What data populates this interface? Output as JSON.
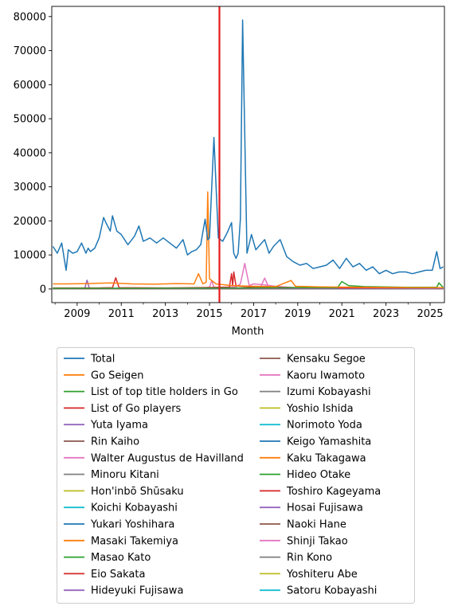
{
  "chart_data": {
    "type": "line",
    "xlabel": "Month",
    "ylabel": "",
    "title": "",
    "x_range": [
      2007.85,
      2025.65
    ],
    "ylim": [
      -4000,
      83000
    ],
    "x_ticks": [
      2009,
      2011,
      2013,
      2015,
      2017,
      2019,
      2021,
      2023,
      2025
    ],
    "x_tick_labels": [
      "2009",
      "2011",
      "2013",
      "2015",
      "2017",
      "2019",
      "2021",
      "2023",
      "2025"
    ],
    "y_ticks": [
      0,
      10000,
      20000,
      30000,
      40000,
      50000,
      60000,
      70000,
      80000
    ],
    "y_tick_labels": [
      "0",
      "10000",
      "20000",
      "30000",
      "40000",
      "50000",
      "60000",
      "70000",
      "80000"
    ],
    "grid": false,
    "legend_position": "below",
    "vertical_line": {
      "x": 2015.45,
      "color": "#e41a1c"
    },
    "series": [
      {
        "name": "Total",
        "color": "#1f77b4",
        "x": [
          2007.9,
          2008.1,
          2008.3,
          2008.5,
          2008.6,
          2008.8,
          2009.0,
          2009.2,
          2009.4,
          2009.5,
          2009.6,
          2009.8,
          2010.0,
          2010.2,
          2010.3,
          2010.5,
          2010.6,
          2010.8,
          2011.0,
          2011.3,
          2011.6,
          2011.8,
          2012.0,
          2012.3,
          2012.6,
          2012.9,
          2013.2,
          2013.5,
          2013.8,
          2014.0,
          2014.2,
          2014.4,
          2014.6,
          2014.8,
          2014.92,
          2015.0,
          2015.2,
          2015.4,
          2015.6,
          2015.8,
          2016.0,
          2016.1,
          2016.2,
          2016.3,
          2016.4,
          2016.5,
          2016.7,
          2016.9,
          2017.1,
          2017.3,
          2017.5,
          2017.7,
          2017.9,
          2018.2,
          2018.5,
          2018.8,
          2019.1,
          2019.4,
          2019.7,
          2020.0,
          2020.3,
          2020.6,
          2020.9,
          2021.2,
          2021.5,
          2021.8,
          2022.1,
          2022.4,
          2022.7,
          2023.0,
          2023.3,
          2023.6,
          2023.9,
          2024.2,
          2024.5,
          2024.8,
          2025.1,
          2025.3,
          2025.45,
          2025.6
        ],
        "y": [
          12500,
          10500,
          13500,
          5500,
          11500,
          10500,
          11000,
          13500,
          10500,
          12000,
          11000,
          12000,
          15000,
          21000,
          19500,
          17000,
          21500,
          17000,
          16000,
          13000,
          15500,
          18500,
          14000,
          15000,
          13500,
          15000,
          13500,
          12000,
          14500,
          10000,
          11000,
          11500,
          13000,
          20500,
          14500,
          15000,
          44500,
          15000,
          14000,
          16500,
          19500,
          10500,
          9000,
          10500,
          20500,
          79000,
          10500,
          16000,
          11500,
          13000,
          14500,
          10500,
          12500,
          14500,
          9500,
          8000,
          7000,
          7500,
          6000,
          6500,
          7000,
          8500,
          6000,
          9000,
          6500,
          7500,
          5500,
          6500,
          4500,
          5500,
          4500,
          5000,
          5000,
          4500,
          5000,
          5500,
          5500,
          11000,
          6000,
          6500
        ]
      },
      {
        "name": "Go Seigen",
        "color": "#ff7f0e",
        "x": [
          2007.9,
          2008.5,
          2009.5,
          2010.5,
          2011.5,
          2012.5,
          2013.5,
          2014.3,
          2014.5,
          2014.7,
          2014.85,
          2014.92,
          2015.0,
          2015.3,
          2016.0,
          2017.0,
          2018.0,
          2018.7,
          2018.9,
          2020.0,
          2022.0,
          2024.0,
          2025.6
        ],
        "y": [
          1500,
          1500,
          1600,
          1800,
          1500,
          1400,
          1600,
          1500,
          4500,
          1500,
          2000,
          28500,
          3000,
          1500,
          1000,
          800,
          700,
          2500,
          800,
          600,
          500,
          400,
          400
        ]
      },
      {
        "name": "List of top title holders in Go",
        "color": "#2ca02c",
        "x": [
          2007.9,
          2012.0,
          2016.0,
          2020.0,
          2020.8,
          2021.0,
          2021.3,
          2022.0,
          2024.0,
          2025.3,
          2025.4,
          2025.6
        ],
        "y": [
          200,
          200,
          300,
          400,
          400,
          2200,
          1000,
          700,
          500,
          500,
          1800,
          400
        ]
      },
      {
        "name": "List of Go players",
        "color": "#d62728",
        "x": [
          2007.9,
          2010.0,
          2010.6,
          2010.75,
          2010.9,
          2013.0,
          2015.9,
          2016.0,
          2016.05,
          2016.1,
          2016.2,
          2017.0,
          2020.0,
          2025.6
        ],
        "y": [
          300,
          300,
          400,
          3300,
          400,
          300,
          500,
          4500,
          1000,
          5000,
          900,
          500,
          400,
          400
        ]
      },
      {
        "name": "Yuta Iyama",
        "color": "#9467bd",
        "x": [
          2007.9,
          2009.0,
          2009.35,
          2009.45,
          2009.55,
          2012.0,
          2016.0,
          2020.0,
          2025.6
        ],
        "y": [
          150,
          150,
          200,
          2600,
          200,
          150,
          200,
          200,
          200
        ]
      },
      {
        "name": "Rin Kaiho",
        "color": "#8c564b",
        "x": [
          2007.9,
          2016.0,
          2025.6
        ],
        "y": [
          100,
          100,
          100
        ]
      },
      {
        "name": "Walter Augustus de Havilland",
        "color": "#e377c2",
        "x": [
          2007.9,
          2014.5,
          2015.0,
          2015.1,
          2015.2,
          2016.2,
          2016.4,
          2016.6,
          2016.8,
          2017.0,
          2017.5,
          2018.0,
          2019.0,
          2025.6
        ],
        "y": [
          100,
          100,
          500,
          2500,
          500,
          600,
          1500,
          7500,
          1000,
          1500,
          1200,
          800,
          300,
          100
        ]
      },
      {
        "name": "Minoru Kitani",
        "color": "#7f7f7f",
        "x": [
          2007.9,
          2016.0,
          2025.6
        ],
        "y": [
          80,
          80,
          80
        ]
      },
      {
        "name": "Hon'inbō Shūsaku",
        "color": "#bcbd22",
        "x": [
          2007.9,
          2016.0,
          2025.6
        ],
        "y": [
          120,
          120,
          120
        ]
      },
      {
        "name": "Koichi Kobayashi",
        "color": "#17becf",
        "x": [
          2007.9,
          2016.0,
          2025.6
        ],
        "y": [
          60,
          60,
          60
        ]
      },
      {
        "name": "Yukari Yoshihara",
        "color": "#1f77b4",
        "x": [
          2007.9,
          2016.0,
          2025.6
        ],
        "y": [
          100,
          100,
          100
        ]
      },
      {
        "name": "Masaki Takemiya",
        "color": "#ff7f0e",
        "x": [
          2007.9,
          2016.0,
          2025.6
        ],
        "y": [
          70,
          70,
          70
        ]
      },
      {
        "name": "Masao Kato",
        "color": "#2ca02c",
        "x": [
          2007.9,
          2016.0,
          2025.6
        ],
        "y": [
          60,
          60,
          60
        ]
      },
      {
        "name": "Eio Sakata",
        "color": "#d62728",
        "x": [
          2007.9,
          2016.0,
          2025.6
        ],
        "y": [
          80,
          80,
          80
        ]
      },
      {
        "name": "Hideyuki Fujisawa",
        "color": "#9467bd",
        "x": [
          2007.9,
          2016.0,
          2025.6
        ],
        "y": [
          50,
          50,
          50
        ]
      },
      {
        "name": "Kensaku Segoe",
        "color": "#8c564b",
        "x": [
          2007.9,
          2016.0,
          2025.6
        ],
        "y": [
          60,
          60,
          60
        ]
      },
      {
        "name": "Kaoru Iwamoto",
        "color": "#e377c2",
        "x": [
          2007.9,
          2016.0,
          2017.3,
          2017.5,
          2017.7,
          2018.0,
          2025.6
        ],
        "y": [
          60,
          60,
          300,
          3200,
          300,
          200,
          60
        ]
      },
      {
        "name": "Izumi Kobayashi",
        "color": "#7f7f7f",
        "x": [
          2007.9,
          2016.0,
          2025.6
        ],
        "y": [
          50,
          50,
          50
        ]
      },
      {
        "name": "Yoshio Ishida",
        "color": "#bcbd22",
        "x": [
          2007.9,
          2016.0,
          2025.6
        ],
        "y": [
          50,
          50,
          50
        ]
      },
      {
        "name": "Norimoto Yoda",
        "color": "#17becf",
        "x": [
          2007.9,
          2016.0,
          2025.6
        ],
        "y": [
          40,
          40,
          40
        ]
      },
      {
        "name": "Keigo Yamashita",
        "color": "#1f77b4",
        "x": [
          2007.9,
          2016.0,
          2025.6
        ],
        "y": [
          40,
          40,
          40
        ]
      },
      {
        "name": "Kaku Takagawa",
        "color": "#ff7f0e",
        "x": [
          2007.9,
          2016.0,
          2025.6
        ],
        "y": [
          40,
          40,
          40
        ]
      },
      {
        "name": "Hideo Otake",
        "color": "#2ca02c",
        "x": [
          2007.9,
          2016.0,
          2025.6
        ],
        "y": [
          50,
          50,
          50
        ]
      },
      {
        "name": "Toshiro Kageyama",
        "color": "#d62728",
        "x": [
          2007.9,
          2016.0,
          2025.6
        ],
        "y": [
          30,
          30,
          30
        ]
      },
      {
        "name": "Hosai Fujisawa",
        "color": "#9467bd",
        "x": [
          2007.9,
          2016.0,
          2025.6
        ],
        "y": [
          30,
          30,
          30
        ]
      },
      {
        "name": "Naoki Hane",
        "color": "#8c564b",
        "x": [
          2007.9,
          2016.0,
          2025.6
        ],
        "y": [
          30,
          30,
          30
        ]
      },
      {
        "name": "Shinji Takao",
        "color": "#e377c2",
        "x": [
          2007.9,
          2016.0,
          2025.6
        ],
        "y": [
          30,
          30,
          30
        ]
      },
      {
        "name": "Rin Kono",
        "color": "#7f7f7f",
        "x": [
          2007.9,
          2016.0,
          2025.6
        ],
        "y": [
          30,
          30,
          30
        ]
      },
      {
        "name": "Yoshiteru Abe",
        "color": "#bcbd22",
        "x": [
          2007.9,
          2016.0,
          2025.6
        ],
        "y": [
          20,
          20,
          20
        ]
      },
      {
        "name": "Satoru Kobayashi",
        "color": "#17becf",
        "x": [
          2007.9,
          2016.0,
          2025.6
        ],
        "y": [
          200,
          200,
          200
        ]
      }
    ]
  }
}
